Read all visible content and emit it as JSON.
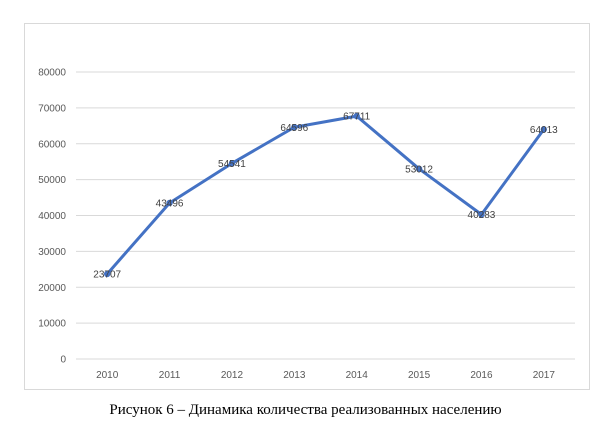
{
  "caption": "Рисунок 6 – Динамика количества реализованных населению",
  "chart_data": {
    "type": "line",
    "categories": [
      "2010",
      "2011",
      "2012",
      "2013",
      "2014",
      "2015",
      "2016",
      "2017"
    ],
    "series": [
      {
        "values": [
          23707,
          43496,
          54541,
          64596,
          67711,
          53012,
          40283,
          64013
        ]
      }
    ],
    "data_labels": [
      "23707",
      "43496",
      "54541",
      "64596",
      "67711",
      "53012",
      "40283",
      "64013"
    ],
    "y_ticks": [
      "0",
      "10000",
      "20000",
      "30000",
      "40000",
      "50000",
      "60000",
      "70000",
      "80000"
    ],
    "ylim": [
      0,
      80000
    ],
    "grid": true,
    "legend": "none",
    "title": "",
    "xlabel": "",
    "ylabel": "",
    "colors": {
      "line": "#4472c4",
      "grid": "#d9d9d9",
      "frame": "#d9d9d9"
    }
  }
}
